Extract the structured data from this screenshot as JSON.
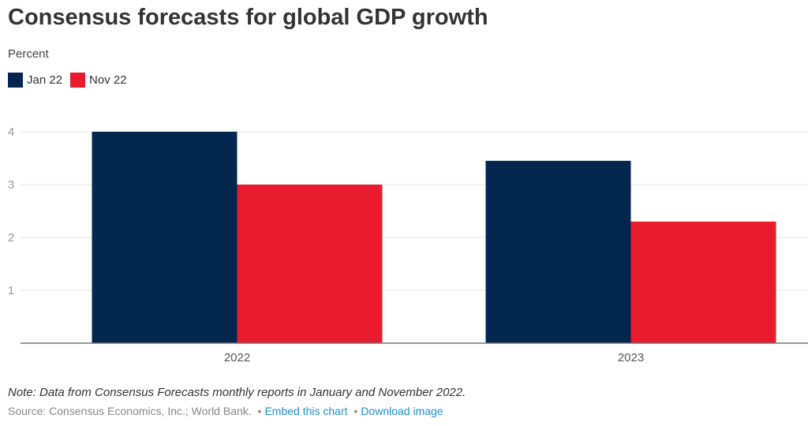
{
  "chart_data": {
    "type": "bar",
    "title": "Consensus forecasts for global GDP growth",
    "subtitle": "Percent",
    "xlabel": "",
    "ylabel": "Percent",
    "categories": [
      "2022",
      "2023"
    ],
    "series": [
      {
        "name": "Jan 22",
        "color": "#03264f",
        "values": [
          4.0,
          3.45
        ]
      },
      {
        "name": "Nov 22",
        "color": "#e81b2f",
        "values": [
          3.0,
          2.3
        ]
      }
    ],
    "ylim": [
      0,
      4
    ],
    "yticks": [
      1,
      2,
      3,
      4
    ],
    "grid": true,
    "legend_position": "top-left"
  },
  "footer": {
    "note": "Note: Data from Consensus Forecasts monthly reports in January and November 2022.",
    "source": "Source: Consensus Economics, Inc.; World Bank.",
    "separator": "•",
    "embed_link": "Embed this chart",
    "download_link": "Download image"
  }
}
